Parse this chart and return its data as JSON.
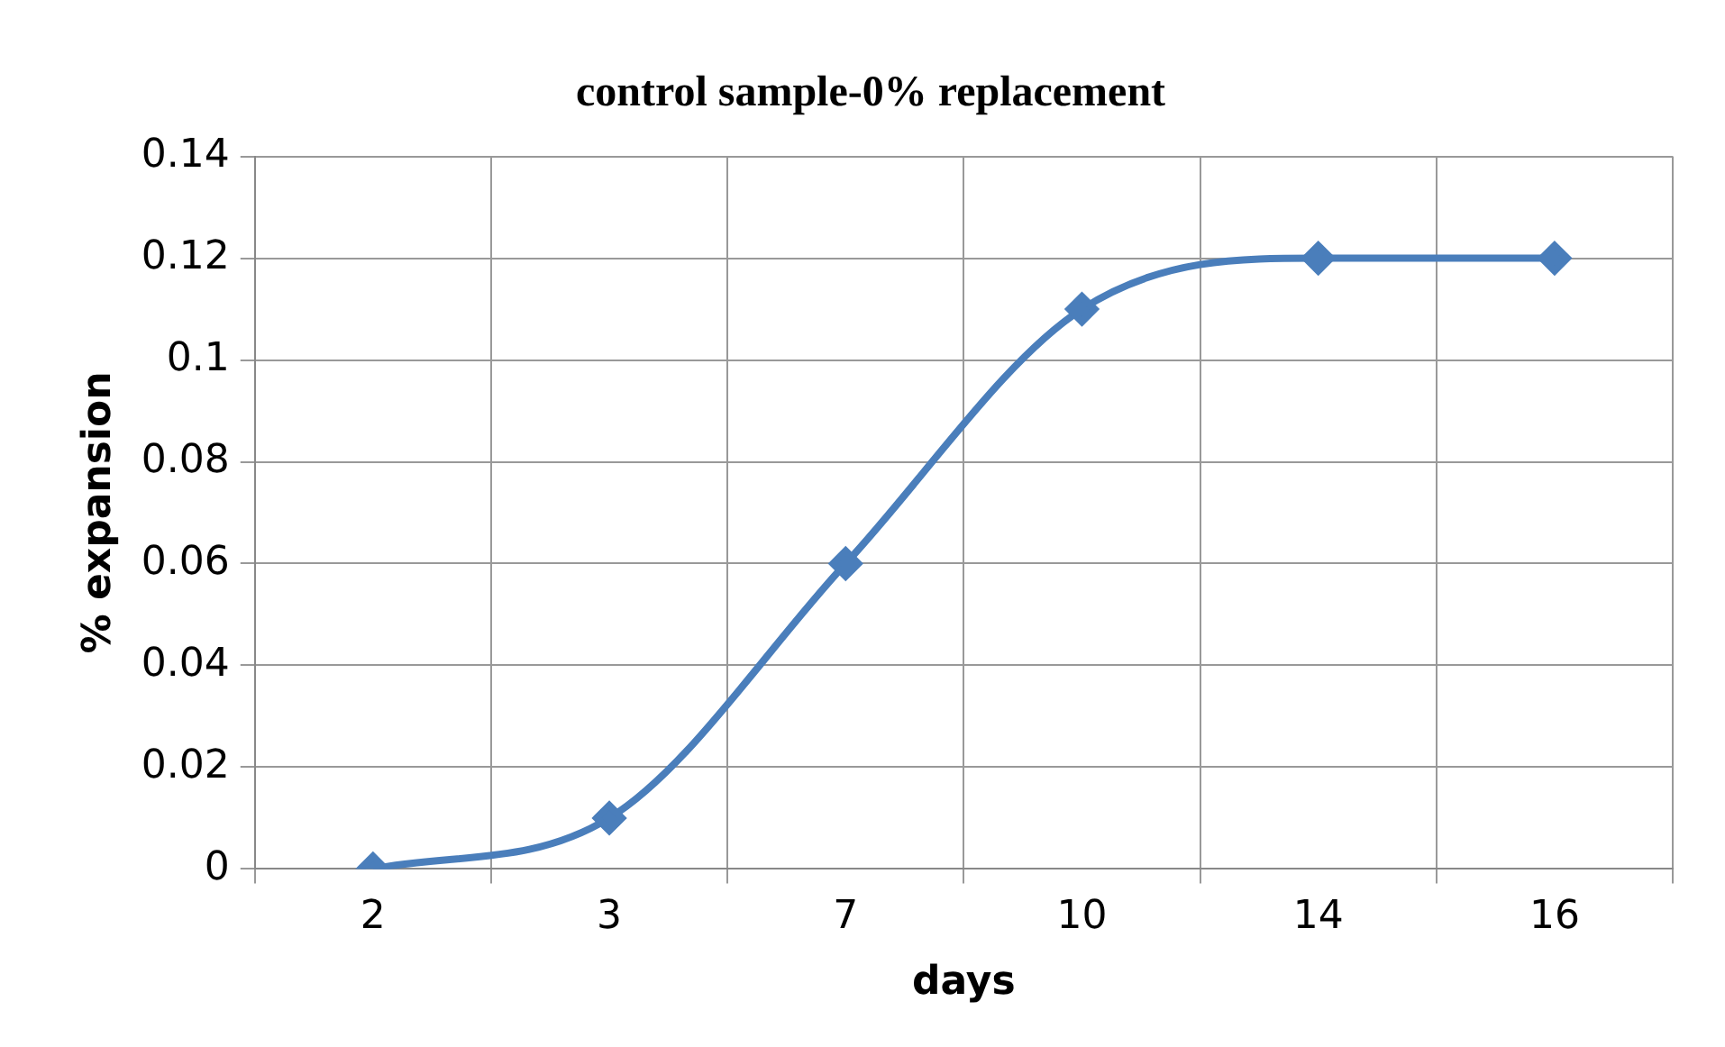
{
  "chart_data": {
    "type": "line",
    "title": "control sample-0% replacement",
    "xlabel": "days",
    "ylabel": "% expansion",
    "categories": [
      "2",
      "3",
      "7",
      "10",
      "14",
      "16"
    ],
    "series": [
      {
        "color": "#4a7ebb",
        "values": [
          0,
          0.01,
          0.06,
          0.11,
          0.12,
          0.12
        ]
      }
    ],
    "ylim": [
      0,
      0.14
    ],
    "yticks": [
      0,
      0.02,
      0.04,
      0.06,
      0.08,
      0.1,
      0.12,
      0.14
    ],
    "grid": true,
    "legend": false,
    "marker": "diamond",
    "line_style": "solid"
  }
}
